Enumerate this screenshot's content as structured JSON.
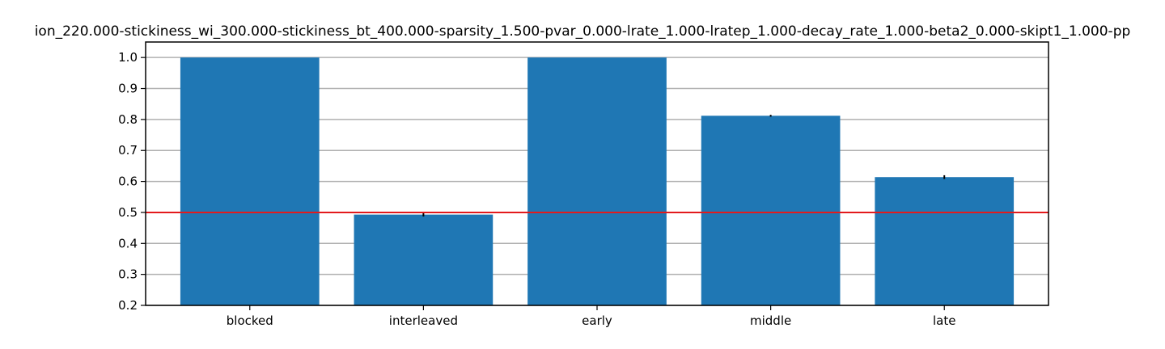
{
  "chart_data": {
    "type": "bar",
    "title": "ion_220.000-stickiness_wi_300.000-stickiness_bt_400.000-sparsity_1.500-pvar_0.000-lrate_1.000-lratep_1.000-decay_rate_1.000-beta2_0.000-skipt1_1.000-pp",
    "xlabel": "",
    "ylabel": "",
    "categories": [
      "blocked",
      "interleaved",
      "early",
      "middle",
      "late"
    ],
    "values": [
      1.0,
      0.493,
      1.0,
      0.812,
      0.614
    ],
    "errors": [
      0.0,
      0.006,
      0.0,
      0.003,
      0.006
    ],
    "ylim": [
      0.2,
      1.05
    ],
    "yticks": [
      0.2,
      0.3,
      0.4,
      0.5,
      0.6,
      0.7,
      0.8,
      0.9,
      1.0
    ],
    "ytick_labels": [
      "0.2",
      "0.3",
      "0.4",
      "0.5",
      "0.6",
      "0.7",
      "0.8",
      "0.9",
      "1.0"
    ],
    "reference_line": 0.5,
    "grid": "horizontal",
    "colors": {
      "bar": "#1f77b4",
      "reference_line": "#e31a1c",
      "grid": "#b0b0b0",
      "error": "#000000"
    }
  }
}
